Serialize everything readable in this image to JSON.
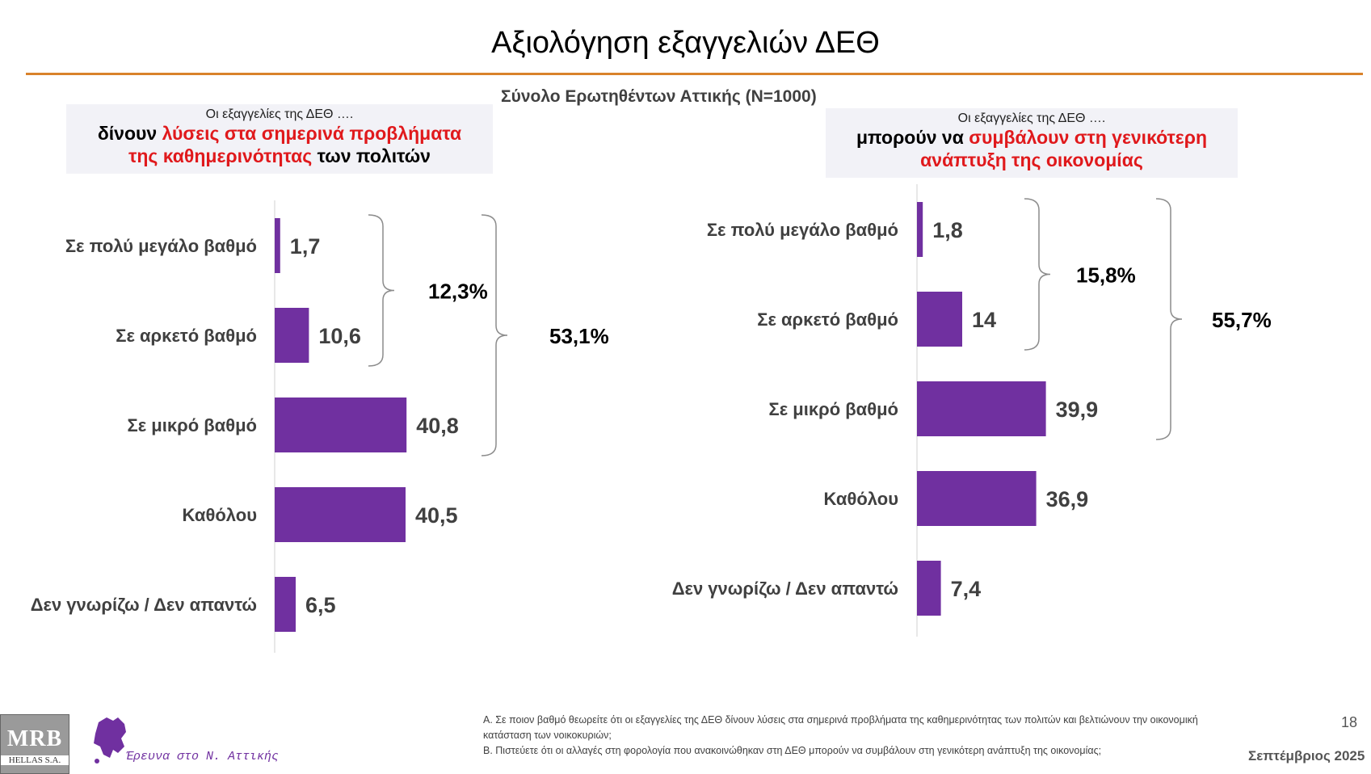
{
  "title": "Αξιολόγηση εξαγγελιών ΔΕΘ",
  "subtitle": "Σύνολο Ερωτηθέντων Αττικής (N=1000)",
  "colors": {
    "bar": "#7030a0",
    "rule": "#d9822b",
    "highlight": "#e0191c"
  },
  "panels": [
    {
      "lead": "Οι εξαγγελίες της ΔΕΘ ….",
      "q_part1": "δίνουν ",
      "q_part2": "λύσεις στα σημερινά προβλήματα",
      "q_part3": "της καθημερινότητας",
      "q_part4": " των πολιτών"
    },
    {
      "lead": "Οι εξαγγελίες της ΔΕΘ ….",
      "q_part1": "μπορούν να ",
      "q_part2": "συμβάλουν στη γενικότερη",
      "q_part3": "ανάπτυξη της οικονομίας",
      "q_part4": ""
    }
  ],
  "chart_data": [
    {
      "type": "bar",
      "orientation": "horizontal",
      "categories": [
        "Σε πολύ μεγάλο βαθμό",
        "Σε αρκετό βαθμό",
        "Σε μικρό βαθμό",
        "Καθόλου",
        "Δεν γνωρίζω / Δεν απαντώ"
      ],
      "values": [
        1.7,
        10.6,
        40.8,
        40.5,
        6.5
      ],
      "value_labels": [
        "1,7",
        "10,6",
        "40,8",
        "40,5",
        "6,5"
      ],
      "brackets": [
        {
          "label": "12,3%",
          "from": 0,
          "to": 1
        },
        {
          "label": "53,1%",
          "from": 0,
          "to": 2
        }
      ],
      "xlim": [
        0,
        100
      ]
    },
    {
      "type": "bar",
      "orientation": "horizontal",
      "categories": [
        "Σε πολύ μεγάλο βαθμό",
        "Σε αρκετό βαθμό",
        "Σε μικρό βαθμό",
        "Καθόλου",
        "Δεν γνωρίζω / Δεν απαντώ"
      ],
      "values": [
        1.8,
        14,
        39.9,
        36.9,
        7.4
      ],
      "value_labels": [
        "1,8",
        "14",
        "39,9",
        "36,9",
        "7,4"
      ],
      "brackets": [
        {
          "label": "15,8%",
          "from": 0,
          "to": 1
        },
        {
          "label": "55,7%",
          "from": 0,
          "to": 2
        }
      ],
      "xlim": [
        0,
        100
      ]
    }
  ],
  "footnote": {
    "a": "Α. Σε ποιον βαθμό θεωρείτε ότι οι εξαγγελίες της ΔΕΘ δίνουν λύσεις στα σημερινά προβλήματα της καθημερινότητας των πολιτών και βελτιώνουν την οικονομική κατάσταση των νοικοκυριών;",
    "b": "Β. Πιστεύετε ότι οι αλλαγές στη φορολογία που ανακοινώθηκαν στη ΔΕΘ μπορούν να συμβάλουν στη γενικότερη ανάπτυξη της οικονομίας;"
  },
  "page_number": "18",
  "date": "Σεπτέμβριος 2025",
  "logo": {
    "line1": "MRB",
    "line2": "HELLAS S.A."
  },
  "survey_label": "Έρευνα στο Ν. Αττικής"
}
